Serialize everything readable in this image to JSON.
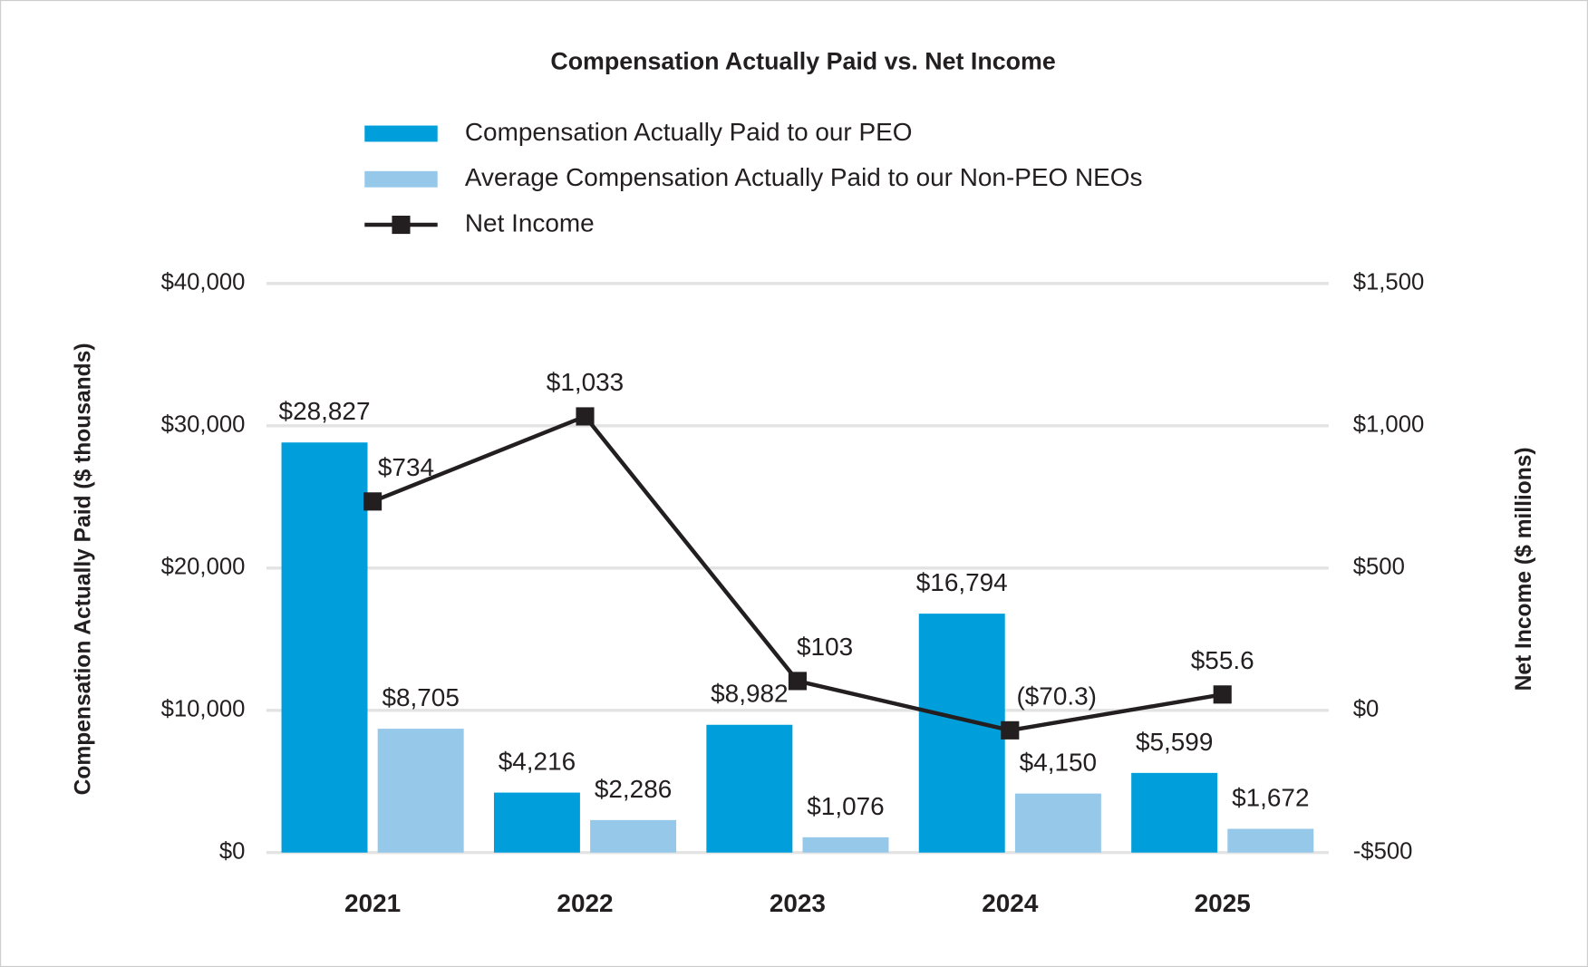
{
  "chart_data": {
    "type": "bar-line",
    "title": "Compensation Actually Paid vs. Net Income",
    "categories": [
      "2021",
      "2022",
      "2023",
      "2024",
      "2025"
    ],
    "series": [
      {
        "name": "Compensation Actually Paid to our PEO",
        "type": "bar",
        "color": "#009fdb",
        "values": [
          28827,
          4216,
          8982,
          16794,
          5599
        ],
        "value_labels": [
          "$28,827",
          "$4,216",
          "$8,982",
          "$16,794",
          "$5,599"
        ]
      },
      {
        "name": "Average Compensation Actually Paid to our Non-PEO NEOs",
        "type": "bar",
        "color": "#96c8ea",
        "values": [
          8705,
          2286,
          1076,
          4150,
          1672
        ],
        "value_labels": [
          "$8,705",
          "$2,286",
          "$1,076",
          "$4,150",
          "$1,672"
        ]
      },
      {
        "name": "Net Income",
        "type": "line",
        "axis": "y2",
        "color": "#231f20",
        "values": [
          734,
          1033,
          103,
          -70.3,
          55.6
        ],
        "value_labels": [
          "$734",
          "$1,033",
          "$103",
          "($70.3)",
          "$55.6"
        ]
      }
    ],
    "ylabel": "Compensation Actually Paid ($ thousands)",
    "y2label": "Net Income ($ millions)",
    "ylim": [
      0,
      40000
    ],
    "yticks": [
      {
        "value": 0,
        "label": "$0"
      },
      {
        "value": 10000,
        "label": "$10,000"
      },
      {
        "value": 20000,
        "label": "$20,000"
      },
      {
        "value": 30000,
        "label": "$30,000"
      },
      {
        "value": 40000,
        "label": "$40,000"
      }
    ],
    "y2lim": [
      -500,
      1500
    ],
    "y2ticks": [
      {
        "value": -500,
        "label": "-$500"
      },
      {
        "value": 0,
        "label": "$0"
      },
      {
        "value": 500,
        "label": "$500"
      },
      {
        "value": 1000,
        "label": "$1,000"
      },
      {
        "value": 1500,
        "label": "$1,500"
      }
    ],
    "grid": true,
    "legend": "top"
  }
}
